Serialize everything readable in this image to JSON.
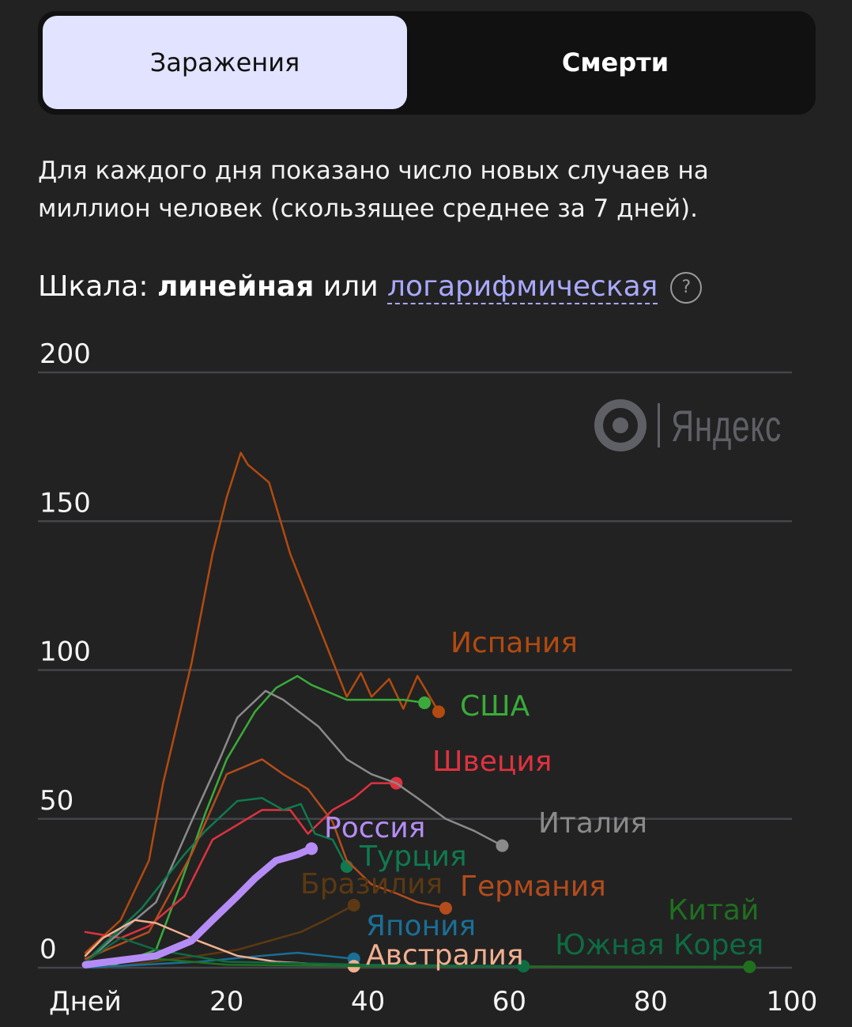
{
  "tabs": [
    {
      "label": "Заражения",
      "active": true
    },
    {
      "label": "Смерти",
      "active": false
    }
  ],
  "description": "Для каждого дня показано число новых случаев на миллион человек (скользящее среднее за 7 дней).",
  "scale": {
    "prefix": "Шкала: ",
    "linear": "линейная",
    "or": " или ",
    "log": "логарифмическая",
    "help": "?"
  },
  "watermark": "Яндекс",
  "chart_data": {
    "type": "line",
    "xlabel": "Дней",
    "ylabel": "",
    "xlim": [
      0,
      100
    ],
    "ylim": [
      0,
      200
    ],
    "xticks": [
      20,
      40,
      60,
      80,
      100
    ],
    "yticks": [
      0,
      50,
      100,
      150,
      200
    ],
    "grid": true,
    "series": [
      {
        "name": "Испания",
        "color": "#b34a0f",
        "x": [
          0,
          5,
          9,
          10,
          11,
          15,
          18,
          20,
          22,
          23,
          26,
          29,
          33,
          37,
          39,
          40.5,
          43,
          45,
          47,
          50
        ],
        "y": [
          5,
          16,
          36,
          49,
          62,
          102,
          139,
          158,
          173,
          169,
          163,
          139,
          115,
          91,
          99,
          91,
          97,
          87,
          98,
          86
        ]
      },
      {
        "name": "США",
        "color": "#3aab3a",
        "x": [
          3,
          10,
          13,
          17,
          20,
          24,
          27,
          30,
          32,
          37,
          42,
          45,
          48
        ],
        "y": [
          0,
          6,
          25,
          52,
          70,
          86,
          94,
          98,
          95,
          90,
          90,
          90,
          89
        ]
      },
      {
        "name": "Швеция",
        "color": "#e0323f",
        "x": [
          0,
          5,
          9,
          14,
          18,
          21.5,
          25,
          29,
          31.5,
          35,
          38,
          40.5,
          44
        ],
        "y": [
          12,
          10,
          14,
          24,
          43,
          48,
          53,
          53,
          45,
          53,
          57,
          62,
          62
        ]
      },
      {
        "name": "Италия",
        "color": "#8a8a8a",
        "x": [
          0,
          10,
          15,
          19,
          21.5,
          25.5,
          28,
          33,
          37,
          40.5,
          44,
          47,
          51,
          55,
          59
        ],
        "y": [
          2,
          22,
          49,
          70,
          84,
          93,
          90,
          81,
          70,
          65,
          62,
          57,
          50,
          46,
          41
        ]
      },
      {
        "name": "Россия",
        "color": "#b58cf5",
        "thick": true,
        "x": [
          0,
          10,
          15,
          18,
          21.5,
          24,
          27,
          30,
          32
        ],
        "y": [
          1,
          4,
          9,
          16,
          24,
          30,
          36,
          38,
          40
        ]
      },
      {
        "name": "Турция",
        "color": "#0f7a4f",
        "x": [
          0,
          8,
          14,
          17,
          21.5,
          25,
          28,
          30.5,
          32.5,
          35,
          37
        ],
        "y": [
          2,
          20,
          38,
          46,
          56,
          57,
          53,
          55,
          45,
          43,
          34
        ]
      },
      {
        "name": "Бразилия",
        "color": "#5c3912",
        "x": [
          3,
          16,
          21.5,
          26,
          30.5,
          34,
          38
        ],
        "y": [
          0,
          4,
          6,
          9,
          12,
          16,
          21
        ]
      },
      {
        "name": "Германия",
        "color": "#b44c1c",
        "x": [
          0,
          9,
          15,
          20,
          25,
          28,
          31.5,
          35,
          37,
          40.5,
          44,
          47,
          51
        ],
        "y": [
          3,
          12,
          38,
          65,
          70,
          65,
          60,
          49,
          36,
          28,
          25,
          22,
          20
        ]
      },
      {
        "name": "Япония",
        "color": "#1a6f96",
        "x": [
          0,
          16,
          25,
          30,
          34,
          38
        ],
        "y": [
          0,
          2,
          4,
          5,
          4,
          3
        ]
      },
      {
        "name": "Австралия",
        "color": "#f2b090",
        "x": [
          0,
          2.5,
          7,
          10,
          16,
          21.5,
          27,
          38
        ],
        "y": [
          4,
          10,
          16,
          15,
          9,
          4,
          2,
          0.5
        ]
      },
      {
        "name": "Китай",
        "color": "#1f6f1f",
        "x": [
          0,
          10,
          20,
          40,
          94
        ],
        "y": [
          1,
          3,
          1,
          0.5,
          0.3
        ]
      },
      {
        "name": "Южная Корея",
        "color": "#0e6b42",
        "x": [
          0,
          5,
          10,
          20,
          40,
          62
        ],
        "y": [
          2,
          10,
          6,
          2,
          1,
          0.5
        ]
      }
    ]
  }
}
